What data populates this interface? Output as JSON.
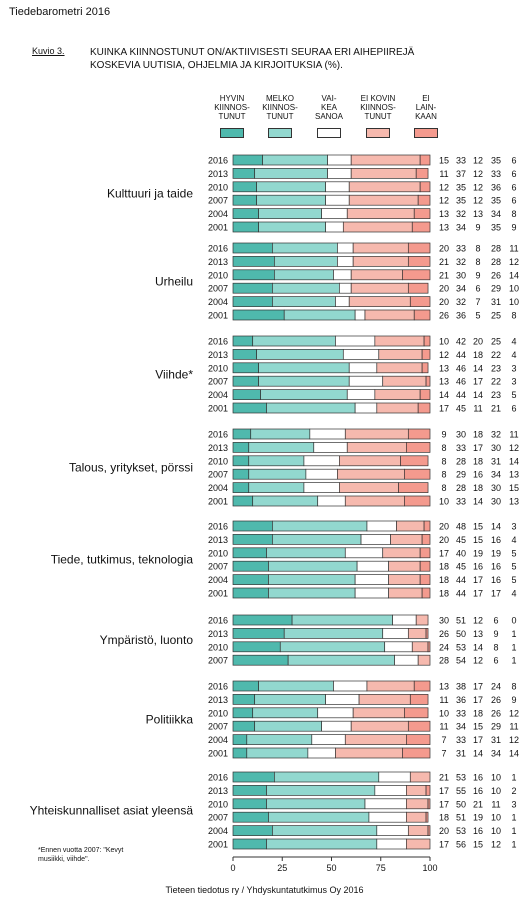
{
  "title": "Tiedebarometri 2016",
  "figure_label": "Kuvio 3.",
  "subtitle": "KUINKA KIINNOSTUNUT ON/AKTIIVISESTI SEURAA ERI AIHEPIIREJÄ\nKOSKEVIA UUTISIA, OHJELMIA JA KIRJOITUKSIA (%).",
  "footnote": "*Ennen vuotta 2007: \"Kevyt\nmusiikki, viihde\".",
  "source": "Tieteen tiedotus ry / Yhdyskuntatutkimus Oy 2016",
  "colors": {
    "hyvin": "#4fb9ad",
    "melko": "#92d8cf",
    "vaikea": "#ffffff",
    "eikovin": "#f6b9ae",
    "eilainkaan": "#f49a8e"
  },
  "chart_data": {
    "type": "bar",
    "orientation": "horizontal",
    "stacked": true,
    "xlim": [
      0,
      100
    ],
    "x_ticks": [
      "0",
      "25",
      "50",
      "75",
      "100"
    ],
    "series": [
      {
        "name": "HYVIN\nKIINNOS-\nTUNUT",
        "color_key": "hyvin"
      },
      {
        "name": "MELKO\nKIINNOS-\nTUNUT",
        "color_key": "melko"
      },
      {
        "name": "VAI-\nKEA\nSANOA",
        "color_key": "vaikea"
      },
      {
        "name": "EI KOVIN\nKIINNOS-\nTUNUT",
        "color_key": "eikovin"
      },
      {
        "name": "EI\nLAIN-\nKAAN",
        "color_key": "eilainkaan"
      }
    ],
    "groups": [
      {
        "label": "Kulttuuri ja taide",
        "rows": [
          {
            "year": "2016",
            "values": [
              15,
              33,
              12,
              35,
              6
            ]
          },
          {
            "year": "2013",
            "values": [
              11,
              37,
              12,
              33,
              6
            ]
          },
          {
            "year": "2010",
            "values": [
              12,
              35,
              12,
              36,
              6
            ]
          },
          {
            "year": "2007",
            "values": [
              12,
              35,
              12,
              35,
              6
            ]
          },
          {
            "year": "2004",
            "values": [
              13,
              32,
              13,
              34,
              8
            ]
          },
          {
            "year": "2001",
            "values": [
              13,
              34,
              9,
              35,
              9
            ]
          }
        ]
      },
      {
        "label": "Urheilu",
        "rows": [
          {
            "year": "2016",
            "values": [
              20,
              33,
              8,
              28,
              11
            ]
          },
          {
            "year": "2013",
            "values": [
              21,
              32,
              8,
              28,
              12
            ]
          },
          {
            "year": "2010",
            "values": [
              21,
              30,
              9,
              26,
              14
            ]
          },
          {
            "year": "2007",
            "values": [
              20,
              34,
              6,
              29,
              10
            ]
          },
          {
            "year": "2004",
            "values": [
              20,
              32,
              7,
              31,
              10
            ]
          },
          {
            "year": "2001",
            "values": [
              26,
              36,
              5,
              25,
              8
            ]
          }
        ]
      },
      {
        "label": "Viihde*",
        "rows": [
          {
            "year": "2016",
            "values": [
              10,
              42,
              20,
              25,
              4
            ]
          },
          {
            "year": "2013",
            "values": [
              12,
              44,
              18,
              22,
              4
            ]
          },
          {
            "year": "2010",
            "values": [
              13,
              46,
              14,
              23,
              3
            ]
          },
          {
            "year": "2007",
            "values": [
              13,
              46,
              17,
              22,
              3
            ]
          },
          {
            "year": "2004",
            "values": [
              14,
              44,
              14,
              23,
              5
            ]
          },
          {
            "year": "2001",
            "values": [
              17,
              45,
              11,
              21,
              6
            ]
          }
        ]
      },
      {
        "label": "Talous, yritykset, pörssi",
        "rows": [
          {
            "year": "2016",
            "values": [
              9,
              30,
              18,
              32,
              11
            ]
          },
          {
            "year": "2013",
            "values": [
              8,
              33,
              17,
              30,
              12
            ]
          },
          {
            "year": "2010",
            "values": [
              8,
              28,
              18,
              31,
              14
            ]
          },
          {
            "year": "2007",
            "values": [
              8,
              29,
              16,
              34,
              13
            ]
          },
          {
            "year": "2004",
            "values": [
              8,
              28,
              18,
              30,
              15
            ]
          },
          {
            "year": "2001",
            "values": [
              10,
              33,
              14,
              30,
              13
            ]
          }
        ]
      },
      {
        "label": "Tiede, tutkimus, teknologia",
        "rows": [
          {
            "year": "2016",
            "values": [
              20,
              48,
              15,
              14,
              3
            ]
          },
          {
            "year": "2013",
            "values": [
              20,
              45,
              15,
              16,
              4
            ]
          },
          {
            "year": "2010",
            "values": [
              17,
              40,
              19,
              19,
              5
            ]
          },
          {
            "year": "2007",
            "values": [
              18,
              45,
              16,
              16,
              5
            ]
          },
          {
            "year": "2004",
            "values": [
              18,
              44,
              17,
              16,
              5
            ]
          },
          {
            "year": "2001",
            "values": [
              18,
              44,
              17,
              17,
              4
            ]
          }
        ]
      },
      {
        "label": "Ympäristö, luonto",
        "rows": [
          {
            "year": "2016",
            "values": [
              30,
              51,
              12,
              6,
              0
            ]
          },
          {
            "year": "2013",
            "values": [
              26,
              50,
              13,
              9,
              1
            ]
          },
          {
            "year": "2010",
            "values": [
              24,
              53,
              14,
              8,
              1
            ]
          },
          {
            "year": "2007",
            "values": [
              28,
              54,
              12,
              6,
              1
            ]
          }
        ]
      },
      {
        "label": "Politiikka",
        "rows": [
          {
            "year": "2016",
            "values": [
              13,
              38,
              17,
              24,
              8
            ]
          },
          {
            "year": "2013",
            "values": [
              11,
              36,
              17,
              26,
              9
            ]
          },
          {
            "year": "2010",
            "values": [
              10,
              33,
              18,
              26,
              12
            ]
          },
          {
            "year": "2007",
            "values": [
              11,
              34,
              15,
              29,
              11
            ]
          },
          {
            "year": "2004",
            "values": [
              7,
              33,
              17,
              31,
              12
            ]
          },
          {
            "year": "2001",
            "values": [
              7,
              31,
              14,
              34,
              14
            ]
          }
        ]
      },
      {
        "label": "Yhteiskunnalliset asiat yleensä",
        "rows": [
          {
            "year": "2016",
            "values": [
              21,
              53,
              16,
              10,
              1
            ]
          },
          {
            "year": "2013",
            "values": [
              17,
              55,
              16,
              10,
              2
            ]
          },
          {
            "year": "2010",
            "values": [
              17,
              50,
              21,
              11,
              3
            ]
          },
          {
            "year": "2007",
            "values": [
              18,
              51,
              19,
              10,
              1
            ]
          },
          {
            "year": "2004",
            "values": [
              20,
              53,
              16,
              10,
              1
            ]
          },
          {
            "year": "2001",
            "values": [
              17,
              56,
              15,
              12,
              1
            ]
          }
        ]
      }
    ]
  }
}
